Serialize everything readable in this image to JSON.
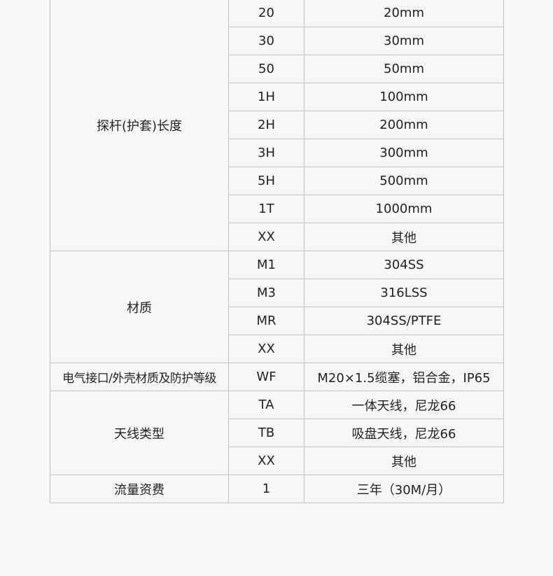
{
  "table": {
    "groups": [
      {
        "name": "探杆(护套)长度",
        "rows": [
          {
            "code": "20",
            "desc": "20mm"
          },
          {
            "code": "30",
            "desc": "30mm"
          },
          {
            "code": "50",
            "desc": "50mm"
          },
          {
            "code": "1H",
            "desc": "100mm"
          },
          {
            "code": "2H",
            "desc": "200mm"
          },
          {
            "code": "3H",
            "desc": "300mm"
          },
          {
            "code": "5H",
            "desc": "500mm"
          },
          {
            "code": "1T",
            "desc": "1000mm"
          },
          {
            "code": "XX",
            "desc": "其他"
          }
        ]
      },
      {
        "name": "材质",
        "rows": [
          {
            "code": "M1",
            "desc": "304SS"
          },
          {
            "code": "M3",
            "desc": "316LSS"
          },
          {
            "code": "MR",
            "desc": "304SS/PTFE"
          },
          {
            "code": "XX",
            "desc": "其他"
          }
        ]
      },
      {
        "name": "电气接口/外壳材质及防护等级",
        "rows": [
          {
            "code": "WF",
            "desc": "M20×1.5缆塞，铝合金，IP65"
          }
        ]
      },
      {
        "name": "天线类型",
        "rows": [
          {
            "code": "TA",
            "desc": "一体天线，尼龙66"
          },
          {
            "code": "TB",
            "desc": "吸盘天线，尼龙66"
          },
          {
            "code": "XX",
            "desc": "其他"
          }
        ]
      },
      {
        "name": "流量资费",
        "rows": [
          {
            "code": "1",
            "desc": "三年（30M/月）"
          }
        ]
      }
    ]
  }
}
